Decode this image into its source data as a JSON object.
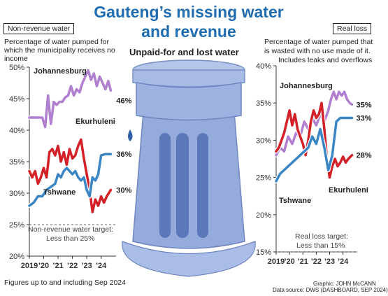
{
  "title_line1": "Gauteng’s missing water",
  "title_line2": "and revenue",
  "subtitle": "Unpaid-for and lost water",
  "left_panel": {
    "heading": "Non-revenue water",
    "description": "Percentage of water pumped for which the municipality receives no income",
    "target_line1": "Non-revenue water target:",
    "target_line2": "Less than 25%"
  },
  "right_panel": {
    "heading": "Real loss",
    "description_line1": "Percentage of water pumped that",
    "description_line2": "is wasted with no use made of it.",
    "description_line3": "Includes leaks and overflows",
    "target_line1": "Real loss target:",
    "target_line2": "Less than 15%"
  },
  "footnote": "Figures up to and including Sep 2024",
  "credit_graphic": "Graphic: JOHN McCANN",
  "credit_source": "Data source: DWS (DASHBOARD, SEP 2024)",
  "colors": {
    "title": "#1f6db0",
    "johannesburg": "#b07fcf",
    "ekurhuleni": "#d42027",
    "tshwane": "#3a86c4",
    "tower": "#8fa8d8",
    "tower_dark": "#5c74b0"
  },
  "chart_data": [
    {
      "type": "line",
      "title": "Non-revenue water",
      "ylim": [
        20,
        50
      ],
      "yticks": [
        "50%",
        "45%",
        "40%",
        "35%",
        "30%",
        "25%",
        "20%"
      ],
      "ytick_values": [
        50,
        45,
        40,
        35,
        30,
        25,
        20
      ],
      "xlim": [
        2019,
        2024.75
      ],
      "xticks": [
        "2019",
        "’20",
        "’21",
        "’22",
        "’23",
        "’24"
      ],
      "xtick_values": [
        2019,
        2020,
        2021,
        2022,
        2023,
        2024
      ],
      "target": 25,
      "series": [
        {
          "name": "Johannesburg",
          "end_label": "46%",
          "x": [
            2019.0,
            2019.5,
            2019.9,
            2020.1,
            2020.3,
            2020.5,
            2020.7,
            2020.9,
            2021.1,
            2021.3,
            2021.5,
            2021.7,
            2021.9,
            2022.1,
            2022.3,
            2022.5,
            2022.7,
            2022.9,
            2023.1,
            2023.3,
            2023.5,
            2023.7,
            2023.9,
            2024.1,
            2024.3,
            2024.5,
            2024.67
          ],
          "y": [
            42.0,
            42.0,
            42.0,
            40.5,
            45.5,
            41.0,
            44.5,
            44.0,
            44.5,
            44.5,
            45.2,
            45.5,
            47.0,
            45.5,
            46.5,
            46.0,
            47.5,
            48.5,
            49.5,
            48.0,
            49.0,
            47.0,
            48.5,
            47.5,
            46.5,
            47.8,
            46.3
          ]
        },
        {
          "name": "Ekurhuleni",
          "end_label": "30%",
          "x": [
            2019.0,
            2019.2,
            2019.4,
            2019.6,
            2019.8,
            2020.0,
            2020.2,
            2020.4,
            2020.6,
            2020.8,
            2021.0,
            2021.2,
            2021.4,
            2021.6,
            2021.8,
            2022.0,
            2022.2,
            2022.4,
            2022.6,
            2022.8,
            2023.0,
            2023.2,
            2023.4,
            2023.6,
            2023.8,
            2024.0,
            2024.2,
            2024.4,
            2024.67
          ],
          "y": [
            33.5,
            32.5,
            33.5,
            31.5,
            32.5,
            34.0,
            32.5,
            36.5,
            37.0,
            36.0,
            37.5,
            35.0,
            36.5,
            34.5,
            37.0,
            35.5,
            36.0,
            37.5,
            38.5,
            35.5,
            33.0,
            30.5,
            27.0,
            29.0,
            28.0,
            29.5,
            28.5,
            29.5,
            30.5
          ]
        },
        {
          "name": "Tshwane",
          "end_label": "36%",
          "x": [
            2019.0,
            2019.3,
            2019.6,
            2019.9,
            2020.2,
            2020.5,
            2020.8,
            2021.0,
            2021.2,
            2021.4,
            2021.6,
            2021.8,
            2022.0,
            2022.2,
            2022.4,
            2022.6,
            2022.8,
            2023.0,
            2023.2,
            2023.4,
            2023.6,
            2023.8,
            2024.0,
            2024.3,
            2024.67
          ],
          "y": [
            28.0,
            28.5,
            29.5,
            29.5,
            30.5,
            31.0,
            31.5,
            33.0,
            32.5,
            33.5,
            34.0,
            33.5,
            33.0,
            33.5,
            32.5,
            32.0,
            32.5,
            30.5,
            29.5,
            32.5,
            32.0,
            33.0,
            36.0,
            36.2,
            36.2
          ]
        }
      ]
    },
    {
      "type": "line",
      "title": "Real loss",
      "ylim": [
        15,
        40
      ],
      "yticks": [
        "40%",
        "35%",
        "30%",
        "25%",
        "20%",
        "15%"
      ],
      "ytick_values": [
        40,
        35,
        30,
        25,
        20,
        15
      ],
      "xlim": [
        2019,
        2024.75
      ],
      "xticks": [
        "2019",
        "’20",
        "’21",
        "’22",
        "’23",
        "’24"
      ],
      "xtick_values": [
        2019,
        2020,
        2021,
        2022,
        2023,
        2024
      ],
      "target": 15,
      "series": [
        {
          "name": "Johannesburg",
          "end_label": "35%",
          "x": [
            2019.0,
            2019.3,
            2019.6,
            2019.9,
            2020.2,
            2020.5,
            2020.8,
            2021.1,
            2021.4,
            2021.7,
            2022.0,
            2022.3,
            2022.6,
            2022.9,
            2023.1,
            2023.3,
            2023.5,
            2023.7,
            2023.9,
            2024.1,
            2024.3,
            2024.5,
            2024.67
          ],
          "y": [
            28.0,
            29.0,
            28.5,
            30.5,
            29.5,
            31.0,
            30.5,
            32.5,
            31.5,
            33.0,
            32.0,
            33.5,
            32.5,
            34.0,
            35.5,
            36.5,
            35.5,
            36.5,
            36.0,
            36.5,
            35.5,
            35.0,
            34.8
          ]
        },
        {
          "name": "Ekurhuleni",
          "end_label": "28%",
          "x": [
            2019.0,
            2019.2,
            2019.4,
            2019.6,
            2019.8,
            2020.0,
            2020.2,
            2020.4,
            2020.6,
            2020.8,
            2021.0,
            2021.2,
            2021.4,
            2021.6,
            2021.8,
            2022.0,
            2022.2,
            2022.4,
            2022.6,
            2022.8,
            2023.0,
            2023.2,
            2023.4,
            2023.6,
            2023.8,
            2024.0,
            2024.2,
            2024.4,
            2024.67
          ],
          "y": [
            28.5,
            29.0,
            30.0,
            31.0,
            32.5,
            34.0,
            32.0,
            33.5,
            31.5,
            30.5,
            29.5,
            28.0,
            30.0,
            32.5,
            34.0,
            33.0,
            33.5,
            35.0,
            31.5,
            27.5,
            25.0,
            26.5,
            27.5,
            26.5,
            27.0,
            27.8,
            27.0,
            27.5,
            28.0
          ]
        },
        {
          "name": "Tshwane",
          "end_label": "33%",
          "x": [
            2019.0,
            2019.3,
            2019.6,
            2019.9,
            2020.2,
            2020.5,
            2020.8,
            2021.1,
            2021.4,
            2021.7,
            2022.0,
            2022.3,
            2022.6,
            2022.9,
            2023.2,
            2023.5,
            2023.8,
            2024.1,
            2024.4,
            2024.67
          ],
          "y": [
            24.5,
            25.5,
            26.0,
            26.5,
            27.0,
            27.5,
            28.0,
            28.5,
            29.0,
            30.5,
            29.5,
            31.5,
            29.0,
            26.0,
            28.0,
            32.5,
            33.0,
            33.0,
            33.0,
            33.0
          ]
        }
      ]
    }
  ]
}
